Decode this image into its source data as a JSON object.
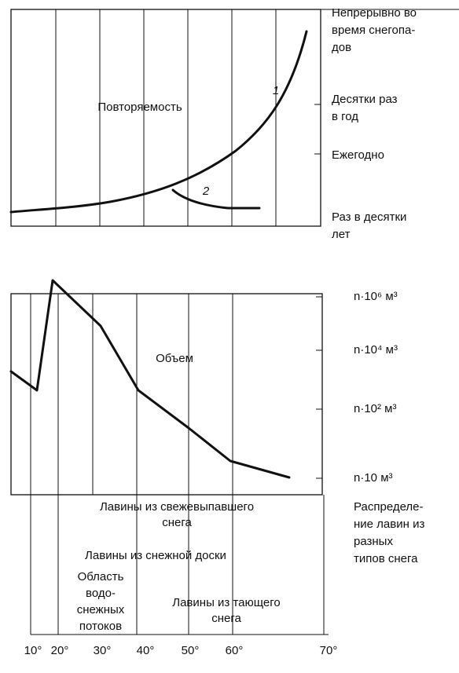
{
  "top_chart": {
    "label": "Повторяемость",
    "curve_labels": [
      "1",
      "2"
    ],
    "scale_labels": [
      [
        "Непрерывно во",
        "время снегопа-",
        "дов"
      ],
      [
        "Десятки раз",
        "в год"
      ],
      [
        "Ежегодно"
      ],
      [
        "Раз в десятки",
        "лет"
      ]
    ]
  },
  "bottom_chart": {
    "label": "Объем",
    "scale_labels": [
      "n·10⁶ м³",
      "n·10⁴ м³",
      "n·10² м³",
      "n·10 м³"
    ],
    "zones": [
      [
        "Лавины из свежевыпавшего",
        "снега"
      ],
      [
        "Лавины из снежной доски"
      ],
      [
        "Область",
        "водо-",
        "снежных",
        "потоков"
      ],
      [
        "Лавины из тающего",
        "снега"
      ]
    ],
    "legend": [
      "Распределе-",
      "ние лавин из",
      "разных",
      "типов снега"
    ],
    "x_labels": [
      "10°",
      "20°",
      "30°",
      "40°",
      "50°",
      "60°",
      "70°"
    ]
  }
}
